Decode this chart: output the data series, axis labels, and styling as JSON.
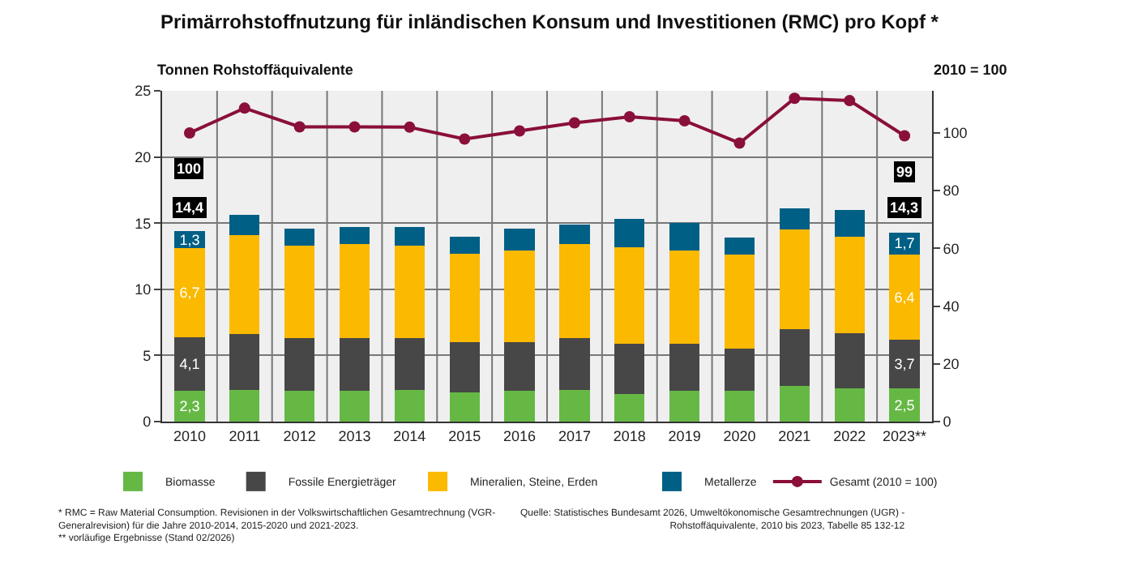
{
  "chart_data": {
    "type": "bar",
    "stacked": true,
    "title": "Primärrohstoffnutzung für inländischen Konsum und Investitionen (RMC) pro Kopf *",
    "ylabel": "Tonnen Rohstoffäquivalente",
    "y2label": "2010 = 100",
    "categories": [
      "2010",
      "2011",
      "2012",
      "2013",
      "2014",
      "2015",
      "2016",
      "2017",
      "2018",
      "2019",
      "2020",
      "2021",
      "2022",
      "2023**"
    ],
    "series": [
      {
        "name": "Biomasse",
        "color": "#66b845",
        "values": [
          2.3,
          2.4,
          2.3,
          2.3,
          2.4,
          2.2,
          2.3,
          2.4,
          2.1,
          2.3,
          2.3,
          2.7,
          2.5,
          2.5
        ],
        "value_labels": [
          "2,3",
          null,
          null,
          null,
          null,
          null,
          null,
          null,
          null,
          null,
          null,
          null,
          null,
          "2,5"
        ]
      },
      {
        "name": "Fossile Energieträger",
        "color": "#474747",
        "values": [
          4.1,
          4.2,
          4.0,
          4.0,
          3.9,
          3.8,
          3.7,
          3.9,
          3.8,
          3.6,
          3.2,
          4.3,
          4.2,
          3.7
        ],
        "value_labels": [
          "4,1",
          null,
          null,
          null,
          null,
          null,
          null,
          null,
          null,
          null,
          null,
          null,
          null,
          "3,7"
        ]
      },
      {
        "name": "Mineralien, Steine, Erden",
        "color": "#fbb900",
        "values": [
          6.7,
          7.5,
          7.0,
          7.1,
          7.0,
          6.7,
          6.9,
          7.1,
          7.3,
          7.0,
          7.1,
          7.5,
          7.3,
          6.4
        ],
        "value_labels": [
          "6,7",
          null,
          null,
          null,
          null,
          null,
          null,
          null,
          null,
          null,
          null,
          null,
          null,
          "6,4"
        ]
      },
      {
        "name": "Metallerze",
        "color": "#005f85",
        "values": [
          1.3,
          1.5,
          1.3,
          1.3,
          1.4,
          1.3,
          1.7,
          1.5,
          2.1,
          2.1,
          1.3,
          1.6,
          2.0,
          1.7
        ],
        "value_labels": [
          "1,3",
          null,
          null,
          null,
          null,
          null,
          null,
          null,
          null,
          null,
          null,
          null,
          null,
          "1,7"
        ]
      },
      {
        "name": "Gesamt (2010 = 100)",
        "type": "line",
        "axis": "y2",
        "marker": "circle",
        "color": "#8a0f3a",
        "values": [
          100,
          108.6,
          102.1,
          102.1,
          102,
          97.9,
          100.7,
          103.5,
          105.6,
          104.2,
          96.5,
          112,
          111.2,
          99
        ],
        "value_labels": [
          "100",
          null,
          null,
          null,
          null,
          null,
          null,
          null,
          null,
          null,
          null,
          null,
          null,
          "99"
        ]
      }
    ],
    "totals": [
      "14,4",
      null,
      null,
      null,
      null,
      null,
      null,
      null,
      null,
      null,
      null,
      null,
      null,
      "14,3"
    ],
    "ylim": [
      0,
      25
    ],
    "yticks": [
      0,
      5,
      10,
      15,
      20,
      25
    ],
    "y2lim": [
      0,
      114.6
    ],
    "y2ticks": [
      0,
      20,
      40,
      60,
      80,
      100
    ],
    "grid": true,
    "legend": "bottom",
    "annotations": [
      "* RMC = Raw Material Consumption. Revisionen in der Volkswirtschaftlichen Gesamtrechnung (VGR-\nGeneralrevision) für die Jahre 2010-2014, 2015-2020 und 2021-2023.\n** vorläufige Ergebnisse (Stand 02/2026)",
      "Quelle: Statistisches Bundesamt 2026, Umweltökonomische Gesamtrechnungen (UGR) -\nRohstoffäquivalente, 2010 bis 2023, Tabelle 85 132-12"
    ]
  }
}
